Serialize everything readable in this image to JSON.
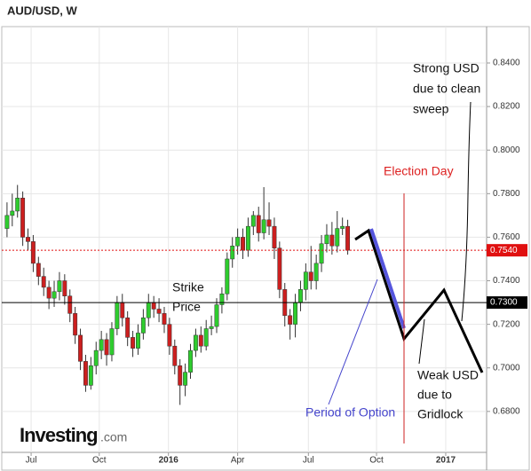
{
  "chart_data": {
    "type": "candlestick",
    "title": "AUD/USD, W",
    "logo_main": "Investing",
    "logo_suffix": ".com",
    "x": [
      0,
      1,
      2,
      3,
      4,
      5,
      6,
      7,
      8,
      9,
      10,
      11,
      12,
      13,
      14,
      15,
      16,
      17,
      18,
      19,
      20,
      21,
      22,
      23,
      24,
      25,
      26,
      27,
      28,
      29,
      30,
      31,
      32,
      33,
      34,
      35,
      36,
      37,
      38,
      39,
      40,
      41,
      42,
      43,
      44,
      45,
      46,
      47,
      48,
      49,
      50,
      51,
      52,
      53,
      54,
      55,
      56,
      57,
      58,
      59,
      60,
      61,
      62,
      63,
      64,
      65
    ],
    "open": [
      0.764,
      0.77,
      0.772,
      0.778,
      0.76,
      0.758,
      0.748,
      0.742,
      0.737,
      0.732,
      0.735,
      0.74,
      0.733,
      0.725,
      0.715,
      0.703,
      0.692,
      0.701,
      0.708,
      0.713,
      0.706,
      0.718,
      0.73,
      0.723,
      0.714,
      0.709,
      0.716,
      0.723,
      0.73,
      0.727,
      0.725,
      0.72,
      0.71,
      0.701,
      0.692,
      0.698,
      0.708,
      0.715,
      0.71,
      0.718,
      0.719,
      0.729,
      0.734,
      0.75,
      0.756,
      0.76,
      0.754,
      0.765,
      0.77,
      0.762,
      0.768,
      0.765,
      0.755,
      0.736,
      0.724,
      0.72,
      0.73,
      0.736,
      0.744,
      0.74,
      0.748,
      0.757,
      0.761,
      0.756,
      0.764,
      0.765
    ],
    "high": [
      0.776,
      0.78,
      0.784,
      0.781,
      0.764,
      0.761,
      0.751,
      0.746,
      0.74,
      0.74,
      0.744,
      0.743,
      0.736,
      0.728,
      0.718,
      0.706,
      0.705,
      0.712,
      0.717,
      0.716,
      0.721,
      0.733,
      0.734,
      0.726,
      0.717,
      0.72,
      0.727,
      0.734,
      0.733,
      0.732,
      0.728,
      0.723,
      0.713,
      0.704,
      0.702,
      0.711,
      0.718,
      0.719,
      0.722,
      0.724,
      0.732,
      0.737,
      0.753,
      0.76,
      0.764,
      0.764,
      0.769,
      0.772,
      0.774,
      0.783,
      0.776,
      0.769,
      0.758,
      0.739,
      0.727,
      0.734,
      0.74,
      0.748,
      0.756,
      0.752,
      0.761,
      0.766,
      0.767,
      0.772,
      0.769,
      0.768
    ],
    "low": [
      0.76,
      0.765,
      0.769,
      0.756,
      0.754,
      0.744,
      0.738,
      0.733,
      0.727,
      0.728,
      0.731,
      0.729,
      0.721,
      0.711,
      0.699,
      0.689,
      0.69,
      0.697,
      0.704,
      0.701,
      0.703,
      0.715,
      0.719,
      0.71,
      0.705,
      0.706,
      0.713,
      0.719,
      0.723,
      0.721,
      0.716,
      0.706,
      0.697,
      0.683,
      0.687,
      0.695,
      0.705,
      0.707,
      0.708,
      0.715,
      0.716,
      0.725,
      0.731,
      0.746,
      0.752,
      0.75,
      0.751,
      0.761,
      0.758,
      0.759,
      0.761,
      0.75,
      0.732,
      0.719,
      0.713,
      0.714,
      0.726,
      0.731,
      0.736,
      0.736,
      0.744,
      0.753,
      0.752,
      0.753,
      0.761,
      0.752
    ],
    "close": [
      0.77,
      0.772,
      0.778,
      0.76,
      0.758,
      0.748,
      0.742,
      0.737,
      0.732,
      0.735,
      0.74,
      0.733,
      0.725,
      0.715,
      0.703,
      0.692,
      0.701,
      0.708,
      0.713,
      0.706,
      0.718,
      0.73,
      0.723,
      0.714,
      0.709,
      0.716,
      0.723,
      0.73,
      0.727,
      0.725,
      0.72,
      0.71,
      0.701,
      0.692,
      0.698,
      0.708,
      0.715,
      0.71,
      0.718,
      0.719,
      0.729,
      0.734,
      0.75,
      0.756,
      0.76,
      0.754,
      0.765,
      0.77,
      0.762,
      0.768,
      0.765,
      0.755,
      0.736,
      0.724,
      0.72,
      0.73,
      0.736,
      0.744,
      0.74,
      0.748,
      0.757,
      0.761,
      0.756,
      0.764,
      0.765,
      0.754
    ],
    "up_color": "#2ecc2e",
    "down_color": "#cc1f1f",
    "xlim": [
      -1,
      91.5
    ],
    "xticks": [
      {
        "value": 4.6,
        "label": "Jul"
      },
      {
        "value": 17.6,
        "label": "Oct"
      },
      {
        "value": 30.8,
        "label": "2016"
      },
      {
        "value": 44,
        "label": "Apr"
      },
      {
        "value": 57.5,
        "label": "Jul"
      },
      {
        "value": 70.5,
        "label": "Oct"
      },
      {
        "value": 83.7,
        "label": "2017"
      }
    ],
    "ylim": [
      0.6612,
      0.8567
    ],
    "yticks": [
      {
        "value": 0.68,
        "label": "0.6800"
      },
      {
        "value": 0.7,
        "label": "0.7000"
      },
      {
        "value": 0.72,
        "label": "0.7200"
      },
      {
        "value": 0.74,
        "label": "0.7400"
      },
      {
        "value": 0.76,
        "label": "0.7600"
      },
      {
        "value": 0.78,
        "label": "0.7800"
      },
      {
        "value": 0.8,
        "label": "0.8000"
      },
      {
        "value": 0.82,
        "label": "0.8200"
      },
      {
        "value": 0.84,
        "label": "0.8400"
      }
    ],
    "grid": true,
    "ref_lines": [
      {
        "value": 0.754,
        "label": "0.7540",
        "color": "#e01010"
      },
      {
        "value": 0.73,
        "label": "0.7300",
        "color": "#000000"
      }
    ],
    "annotations": {
      "strong": [
        "Strong USD",
        "due to clean",
        "sweep"
      ],
      "election": "Election Day",
      "strike": [
        "Strike",
        "Price"
      ],
      "weak": [
        "Weak USD",
        "due to",
        "Gridlock"
      ],
      "period": "Period of Option"
    }
  }
}
